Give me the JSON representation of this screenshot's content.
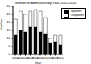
{
  "chart_data": {
    "type": "bar",
    "title": "Number of Admissions by Year, 2001-2010",
    "x_label": "Year",
    "y_label": "Number",
    "categories": [
      "2001",
      "2002",
      "2003",
      "2004",
      "2005",
      "2006",
      "2007",
      "2008",
      "2009",
      "2010"
    ],
    "series": [
      {
        "name": "Inpatient",
        "color": "#000000",
        "values": [
          12,
          15,
          14,
          17,
          17,
          14,
          13,
          7,
          8,
          6
        ]
      },
      {
        "name": "Outpatient",
        "color": "#ffffff",
        "values": [
          10,
          12,
          11,
          10,
          11,
          13,
          10,
          3,
          4,
          6
        ]
      }
    ],
    "ylim": [
      0,
      30
    ],
    "yticks": [
      0,
      5,
      10,
      15,
      20,
      25,
      30
    ],
    "stacked": true,
    "legend": "top-right",
    "grid": false
  }
}
